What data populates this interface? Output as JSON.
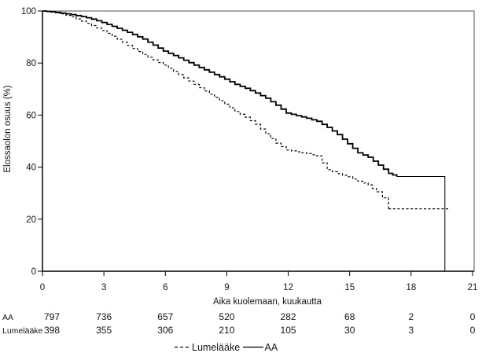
{
  "chart_data": {
    "type": "line",
    "subtype": "kaplan-meier-step",
    "title": "",
    "xlabel": "Aika kuolemaan, kuukautta",
    "ylabel": "Elossaolon osuus (%)",
    "xlim": [
      0,
      21
    ],
    "ylim": [
      0,
      100
    ],
    "xticks": [
      0,
      3,
      6,
      9,
      12,
      15,
      18,
      21
    ],
    "yticks": [
      0,
      20,
      40,
      60,
      80,
      100
    ],
    "grid": false,
    "frame": true,
    "legend_position": "bottom-center",
    "line_color": "#000000",
    "series": [
      {
        "name": "AA",
        "style": "solid",
        "color": "#000000",
        "points": [
          [
            0,
            100
          ],
          [
            0.4,
            99.7
          ],
          [
            0.9,
            99.2
          ],
          [
            1.4,
            98.6
          ],
          [
            1.9,
            97.9
          ],
          [
            2.4,
            96.9
          ],
          [
            2.9,
            95.6
          ],
          [
            3.4,
            94.1
          ],
          [
            3.9,
            92.6
          ],
          [
            4.4,
            91.0
          ],
          [
            4.9,
            89.2
          ],
          [
            5.4,
            86.9
          ],
          [
            5.9,
            84.6
          ],
          [
            6.4,
            82.9
          ],
          [
            6.9,
            81.1
          ],
          [
            7.4,
            79.2
          ],
          [
            7.9,
            77.4
          ],
          [
            8.4,
            75.6
          ],
          [
            8.9,
            73.8
          ],
          [
            9.4,
            71.8
          ],
          [
            9.9,
            70.3
          ],
          [
            10.4,
            68.5
          ],
          [
            10.9,
            66.5
          ],
          [
            11.4,
            63.8
          ],
          [
            11.9,
            60.8
          ],
          [
            12.4,
            59.8
          ],
          [
            12.9,
            58.8
          ],
          [
            13.4,
            57.6
          ],
          [
            13.9,
            55.3
          ],
          [
            14.4,
            52.5
          ],
          [
            14.9,
            49.0
          ],
          [
            15.4,
            45.5
          ],
          [
            15.9,
            43.8
          ],
          [
            16.4,
            40.8
          ],
          [
            16.9,
            37.6
          ],
          [
            17.3,
            36.4
          ]
        ],
        "tail": [
          [
            17.3,
            36.4
          ],
          [
            19.65,
            36.4
          ],
          [
            19.65,
            0
          ]
        ]
      },
      {
        "name": "Lumelääke",
        "style": "dashed",
        "color": "#000000",
        "points": [
          [
            0,
            100
          ],
          [
            0.4,
            99.6
          ],
          [
            0.9,
            98.9
          ],
          [
            1.4,
            97.8
          ],
          [
            1.9,
            96.1
          ],
          [
            2.4,
            94.4
          ],
          [
            2.9,
            92.5
          ],
          [
            3.4,
            90.3
          ],
          [
            3.9,
            88.0
          ],
          [
            4.4,
            85.6
          ],
          [
            4.9,
            83.3
          ],
          [
            5.4,
            81.2
          ],
          [
            5.9,
            79.2
          ],
          [
            6.4,
            76.8
          ],
          [
            6.9,
            74.3
          ],
          [
            7.4,
            71.8
          ],
          [
            7.9,
            69.3
          ],
          [
            8.4,
            66.8
          ],
          [
            8.9,
            64.2
          ],
          [
            9.4,
            61.4
          ],
          [
            9.9,
            59.2
          ],
          [
            10.4,
            56.5
          ],
          [
            10.9,
            52.8
          ],
          [
            11.4,
            49.2
          ],
          [
            11.9,
            46.6
          ],
          [
            12.4,
            45.9
          ],
          [
            12.9,
            45.2
          ],
          [
            13.4,
            44.3
          ],
          [
            13.9,
            39.0
          ],
          [
            14.4,
            37.5
          ],
          [
            14.9,
            36.3
          ],
          [
            15.4,
            34.6
          ],
          [
            15.9,
            33.2
          ],
          [
            16.3,
            30.5
          ],
          [
            16.6,
            28.2
          ],
          [
            16.9,
            24.0
          ]
        ],
        "tail": [
          [
            16.9,
            24.0
          ],
          [
            19.9,
            24.0
          ]
        ]
      }
    ],
    "risk_table": {
      "rows": [
        {
          "label": "AA",
          "values": [
            797,
            736,
            657,
            520,
            282,
            68,
            2,
            0
          ]
        },
        {
          "label": "Lumelääke",
          "values": [
            398,
            355,
            306,
            210,
            105,
            30,
            3,
            0
          ]
        }
      ]
    },
    "legend": [
      {
        "label": "Lumelääke",
        "style": "dashed"
      },
      {
        "label": "AA",
        "style": "solid"
      }
    ]
  }
}
